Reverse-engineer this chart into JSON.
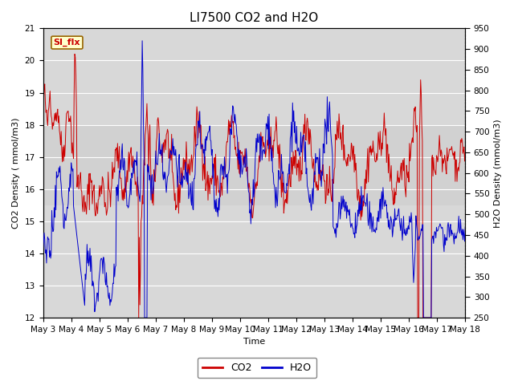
{
  "title": "LI7500 CO2 and H2O",
  "xlabel": "Time",
  "ylabel_left": "CO2 Density ( mmol/m3)",
  "ylabel_right": "H2O Density (mmol/m3)",
  "ylim_left": [
    12.0,
    21.0
  ],
  "ylim_right": [
    250,
    950
  ],
  "x_tick_labels": [
    "May 3",
    "May 4",
    "May 5",
    "May 6",
    "May 7",
    "May 8",
    "May 9",
    "May 10",
    "May 11",
    "May 12",
    "May 13",
    "May 14",
    "May 15",
    "May 16",
    "May 17",
    "May 18"
  ],
  "co2_color": "#cc0000",
  "h2o_color": "#0000cc",
  "axes_facecolor": "#d8d8d8",
  "figure_facecolor": "#ffffff",
  "band_color": "#c0c0c0",
  "tab_text": "SI_flx",
  "tab_bg": "#ffffcc",
  "tab_border": "#996600",
  "tab_text_color": "#cc0000",
  "grid_color": "#ffffff",
  "legend_co2": "CO2",
  "legend_h2o": "H2O",
  "title_fontsize": 11,
  "axis_label_fontsize": 8,
  "tick_label_fontsize": 7.5,
  "line_width": 0.7
}
